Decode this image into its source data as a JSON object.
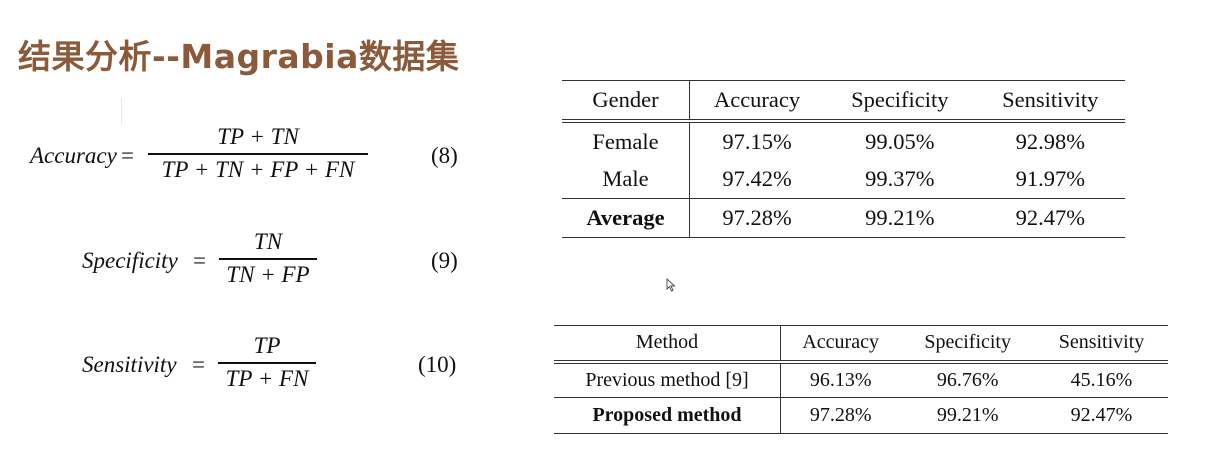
{
  "title": "结果分析--Magrabia数据集",
  "equations": [
    {
      "lhs": "Accuracy",
      "numerator": "TP + TN",
      "denominator": "TP + TN + FP + FN",
      "number": "(8)"
    },
    {
      "lhs": "Specificity",
      "numerator": "TN",
      "denominator": "TN + FP",
      "number": "(9)"
    },
    {
      "lhs": "Sensitivity",
      "numerator": "TP",
      "denominator": "TP + FN",
      "number": "(10)"
    }
  ],
  "table1": {
    "headers": [
      "Gender",
      "Accuracy",
      "Specificity",
      "Sensitivity"
    ],
    "rows": [
      [
        "Female",
        "97.15%",
        "99.05%",
        "92.98%"
      ],
      [
        "Male",
        "97.42%",
        "99.37%",
        "91.97%"
      ],
      [
        "Average",
        "97.28%",
        "99.21%",
        "92.47%"
      ]
    ]
  },
  "table2": {
    "headers": [
      "Method",
      "Accuracy",
      "Specificity",
      "Sensitivity"
    ],
    "rows": [
      [
        "Previous method [9]",
        "96.13%",
        "96.76%",
        "45.16%"
      ],
      [
        "Proposed method",
        "97.28%",
        "99.21%",
        "92.47%"
      ]
    ]
  },
  "colors": {
    "title": "#8a5a3b",
    "text": "#111111"
  }
}
